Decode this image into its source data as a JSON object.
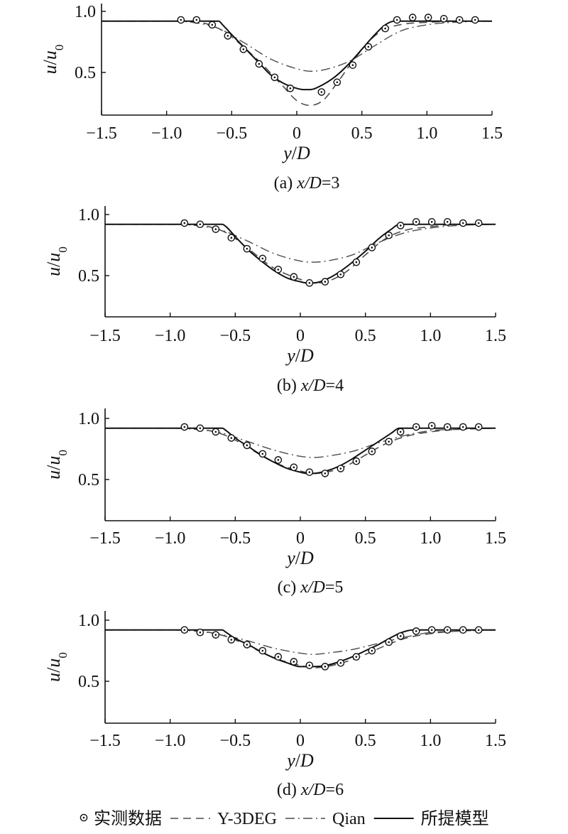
{
  "legend": [
    {
      "id": "measured",
      "label": "实测数据",
      "style": "marker"
    },
    {
      "id": "y3deg",
      "label": "Y-3DEG",
      "style": "dashed"
    },
    {
      "id": "qian",
      "label": "Qian",
      "style": "dashdot"
    },
    {
      "id": "model",
      "label": "所提模型",
      "style": "solid"
    }
  ],
  "chart_data": [
    {
      "type": "line",
      "caption": "(a) x/D=3",
      "xlabel": "y/D",
      "ylabel": "u/u0",
      "xlim": [
        -1.5,
        1.5
      ],
      "ylim": [
        0.15,
        1.05
      ],
      "xticks": [
        "−1.5",
        "−1.0",
        "−0.5",
        "0",
        "0.5",
        "1.0",
        "1.5"
      ],
      "yticks": [
        "0.5",
        "1.0"
      ],
      "series": [
        {
          "name": "实测数据",
          "type": "scatter",
          "x": [
            -0.89,
            -0.77,
            -0.65,
            -0.53,
            -0.41,
            -0.29,
            -0.17,
            -0.05,
            0.19,
            0.31,
            0.43,
            0.55,
            0.68,
            0.77,
            0.89,
            1.01,
            1.13,
            1.25,
            1.37
          ],
          "y": [
            0.93,
            0.93,
            0.89,
            0.8,
            0.69,
            0.57,
            0.46,
            0.37,
            0.34,
            0.42,
            0.56,
            0.71,
            0.86,
            0.93,
            0.95,
            0.95,
            0.94,
            0.93,
            0.93
          ]
        },
        {
          "name": "Y-3DEG",
          "type": "line",
          "x": [
            -1.5,
            -0.85,
            -0.7,
            -0.55,
            -0.4,
            -0.25,
            -0.1,
            0.0,
            0.1,
            0.2,
            0.3,
            0.45,
            0.6,
            0.72,
            0.85,
            1.0,
            1.2,
            1.5
          ],
          "y": [
            0.92,
            0.92,
            0.9,
            0.83,
            0.7,
            0.55,
            0.38,
            0.27,
            0.23,
            0.27,
            0.4,
            0.62,
            0.8,
            0.87,
            0.9,
            0.91,
            0.92,
            0.92
          ]
        },
        {
          "name": "Qian",
          "type": "line",
          "x": [
            -1.5,
            -1.0,
            -0.8,
            -0.6,
            -0.4,
            -0.2,
            0.0,
            0.1,
            0.2,
            0.4,
            0.6,
            0.8,
            1.0,
            1.2,
            1.5
          ],
          "y": [
            0.92,
            0.92,
            0.91,
            0.86,
            0.74,
            0.61,
            0.53,
            0.51,
            0.52,
            0.59,
            0.72,
            0.84,
            0.89,
            0.91,
            0.92
          ]
        },
        {
          "name": "所提模型",
          "type": "line",
          "x": [
            -1.5,
            -0.6,
            -0.57,
            -0.5,
            -0.4,
            -0.3,
            -0.2,
            -0.1,
            0.0,
            0.05,
            0.1,
            0.2,
            0.3,
            0.4,
            0.5,
            0.6,
            0.68,
            0.75,
            0.85,
            1.5
          ],
          "y": [
            0.92,
            0.92,
            0.89,
            0.81,
            0.7,
            0.59,
            0.48,
            0.41,
            0.37,
            0.36,
            0.36,
            0.4,
            0.47,
            0.57,
            0.69,
            0.81,
            0.89,
            0.92,
            0.92,
            0.92
          ]
        }
      ]
    },
    {
      "type": "line",
      "caption": "(b) x/D=4",
      "xlabel": "y/D",
      "ylabel": "u/u0",
      "xlim": [
        -1.5,
        1.5
      ],
      "ylim": [
        0.15,
        1.05
      ],
      "xticks": [
        "−1.5",
        "−1.0",
        "−0.5",
        "0",
        "0.5",
        "1.0",
        "1.5"
      ],
      "yticks": [
        "0.5",
        "1.0"
      ],
      "series": [
        {
          "name": "实测数据",
          "type": "scatter",
          "x": [
            -0.89,
            -0.77,
            -0.65,
            -0.53,
            -0.41,
            -0.29,
            -0.17,
            -0.05,
            0.07,
            0.19,
            0.31,
            0.43,
            0.55,
            0.68,
            0.77,
            0.89,
            1.01,
            1.13,
            1.25,
            1.37
          ],
          "y": [
            0.93,
            0.92,
            0.88,
            0.81,
            0.72,
            0.64,
            0.55,
            0.49,
            0.44,
            0.45,
            0.51,
            0.61,
            0.73,
            0.83,
            0.91,
            0.94,
            0.94,
            0.94,
            0.93,
            0.93
          ]
        },
        {
          "name": "Y-3DEG",
          "type": "line",
          "x": [
            -1.5,
            -0.85,
            -0.7,
            -0.55,
            -0.4,
            -0.2,
            0.0,
            0.1,
            0.2,
            0.35,
            0.5,
            0.65,
            0.8,
            1.0,
            1.2,
            1.5
          ],
          "y": [
            0.92,
            0.92,
            0.9,
            0.84,
            0.72,
            0.56,
            0.47,
            0.44,
            0.45,
            0.53,
            0.67,
            0.8,
            0.87,
            0.9,
            0.92,
            0.92
          ]
        },
        {
          "name": "Qian",
          "type": "line",
          "x": [
            -1.5,
            -1.0,
            -0.8,
            -0.6,
            -0.4,
            -0.2,
            0.0,
            0.1,
            0.2,
            0.4,
            0.6,
            0.8,
            1.0,
            1.2,
            1.5
          ],
          "y": [
            0.92,
            0.92,
            0.91,
            0.87,
            0.78,
            0.68,
            0.62,
            0.61,
            0.62,
            0.67,
            0.77,
            0.85,
            0.89,
            0.91,
            0.92
          ]
        },
        {
          "name": "所提模型",
          "type": "line",
          "x": [
            -1.5,
            -0.6,
            -0.57,
            -0.5,
            -0.4,
            -0.3,
            -0.2,
            -0.1,
            0.0,
            0.05,
            0.1,
            0.2,
            0.3,
            0.4,
            0.5,
            0.6,
            0.7,
            0.76,
            0.85,
            1.5
          ],
          "y": [
            0.92,
            0.92,
            0.9,
            0.82,
            0.71,
            0.62,
            0.54,
            0.48,
            0.45,
            0.44,
            0.44,
            0.47,
            0.53,
            0.61,
            0.7,
            0.8,
            0.88,
            0.92,
            0.92,
            0.92
          ]
        }
      ]
    },
    {
      "type": "line",
      "caption": "(c) x/D=5",
      "xlabel": "y/D",
      "ylabel": "u/u0",
      "xlim": [
        -1.5,
        1.5
      ],
      "ylim": [
        0.15,
        1.05
      ],
      "xticks": [
        "−1.5",
        "−1.0",
        "−0.5",
        "0",
        "0.5",
        "1.0",
        "1.5"
      ],
      "yticks": [
        "0.5",
        "1.0"
      ],
      "series": [
        {
          "name": "实测数据",
          "type": "scatter",
          "x": [
            -0.89,
            -0.77,
            -0.65,
            -0.53,
            -0.41,
            -0.29,
            -0.17,
            -0.05,
            0.07,
            0.19,
            0.31,
            0.43,
            0.55,
            0.68,
            0.77,
            0.89,
            1.01,
            1.13,
            1.25,
            1.37
          ],
          "y": [
            0.93,
            0.92,
            0.89,
            0.84,
            0.78,
            0.71,
            0.66,
            0.6,
            0.56,
            0.55,
            0.59,
            0.65,
            0.73,
            0.81,
            0.89,
            0.93,
            0.94,
            0.93,
            0.93,
            0.93
          ]
        },
        {
          "name": "Y-3DEG",
          "type": "line",
          "x": [
            -1.5,
            -0.85,
            -0.7,
            -0.55,
            -0.4,
            -0.2,
            0.0,
            0.1,
            0.2,
            0.35,
            0.5,
            0.65,
            0.8,
            1.0,
            1.2,
            1.5
          ],
          "y": [
            0.92,
            0.92,
            0.9,
            0.85,
            0.76,
            0.64,
            0.57,
            0.55,
            0.56,
            0.61,
            0.7,
            0.79,
            0.85,
            0.89,
            0.91,
            0.92
          ]
        },
        {
          "name": "Qian",
          "type": "line",
          "x": [
            -1.5,
            -1.0,
            -0.8,
            -0.6,
            -0.4,
            -0.2,
            0.0,
            0.1,
            0.2,
            0.4,
            0.6,
            0.8,
            1.0,
            1.2,
            1.5
          ],
          "y": [
            0.92,
            0.92,
            0.91,
            0.88,
            0.81,
            0.74,
            0.69,
            0.68,
            0.69,
            0.73,
            0.8,
            0.86,
            0.9,
            0.91,
            0.92
          ]
        },
        {
          "name": "所提模型",
          "type": "line",
          "x": [
            -1.5,
            -0.6,
            -0.57,
            -0.5,
            -0.4,
            -0.3,
            -0.2,
            -0.1,
            0.0,
            0.05,
            0.1,
            0.2,
            0.3,
            0.4,
            0.5,
            0.6,
            0.7,
            0.76,
            0.85,
            1.5
          ],
          "y": [
            0.92,
            0.92,
            0.9,
            0.84,
            0.77,
            0.7,
            0.64,
            0.59,
            0.56,
            0.55,
            0.55,
            0.57,
            0.61,
            0.67,
            0.74,
            0.81,
            0.88,
            0.92,
            0.92,
            0.92
          ]
        }
      ]
    },
    {
      "type": "line",
      "caption": "(d) x/D=6",
      "xlabel": "y/D",
      "ylabel": "u/u0",
      "xlim": [
        -1.5,
        1.5
      ],
      "ylim": [
        0.15,
        1.05
      ],
      "xticks": [
        "−1.5",
        "−1.0",
        "−0.5",
        "0",
        "0.5",
        "1.0",
        "1.5"
      ],
      "yticks": [
        "0.5",
        "1.0"
      ],
      "series": [
        {
          "name": "实测数据",
          "type": "scatter",
          "x": [
            -0.89,
            -0.77,
            -0.65,
            -0.53,
            -0.41,
            -0.29,
            -0.17,
            -0.05,
            0.07,
            0.19,
            0.31,
            0.43,
            0.55,
            0.68,
            0.77,
            0.89,
            1.01,
            1.13,
            1.25,
            1.37
          ],
          "y": [
            0.92,
            0.9,
            0.88,
            0.84,
            0.8,
            0.75,
            0.7,
            0.66,
            0.63,
            0.62,
            0.65,
            0.7,
            0.75,
            0.82,
            0.87,
            0.91,
            0.92,
            0.92,
            0.92,
            0.92
          ]
        },
        {
          "name": "Y-3DEG",
          "type": "line",
          "x": [
            -1.5,
            -0.85,
            -0.7,
            -0.55,
            -0.4,
            -0.2,
            0.0,
            0.1,
            0.2,
            0.35,
            0.5,
            0.65,
            0.8,
            1.0,
            1.2,
            1.5
          ],
          "y": [
            0.92,
            0.92,
            0.9,
            0.86,
            0.79,
            0.69,
            0.63,
            0.61,
            0.62,
            0.66,
            0.72,
            0.79,
            0.85,
            0.89,
            0.91,
            0.92
          ]
        },
        {
          "name": "Qian",
          "type": "line",
          "x": [
            -1.5,
            -1.0,
            -0.8,
            -0.6,
            -0.4,
            -0.2,
            0.0,
            0.1,
            0.2,
            0.4,
            0.6,
            0.8,
            1.0,
            1.2,
            1.5
          ],
          "y": [
            0.92,
            0.92,
            0.91,
            0.88,
            0.83,
            0.77,
            0.73,
            0.72,
            0.73,
            0.76,
            0.81,
            0.86,
            0.9,
            0.91,
            0.92
          ]
        },
        {
          "name": "所提模型",
          "type": "line",
          "x": [
            -1.5,
            -0.6,
            -0.57,
            -0.5,
            -0.4,
            -0.3,
            -0.2,
            -0.1,
            0.0,
            0.05,
            0.1,
            0.2,
            0.3,
            0.4,
            0.5,
            0.6,
            0.7,
            0.78,
            0.87,
            1.5
          ],
          "y": [
            0.92,
            0.92,
            0.9,
            0.85,
            0.8,
            0.74,
            0.69,
            0.65,
            0.62,
            0.62,
            0.62,
            0.63,
            0.66,
            0.7,
            0.75,
            0.8,
            0.86,
            0.9,
            0.92,
            0.92
          ]
        }
      ]
    }
  ]
}
